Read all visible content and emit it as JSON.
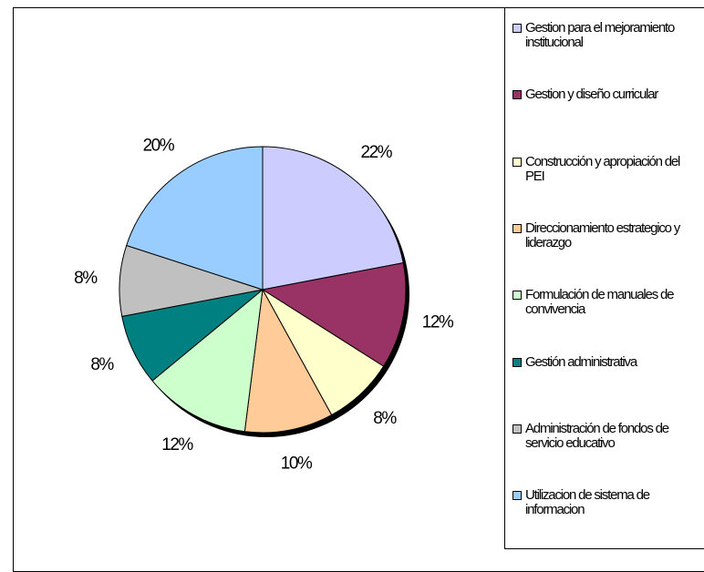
{
  "chart_data": {
    "type": "pie",
    "categories": [
      "Gestion para el mejoramiento institucional",
      "Gestion y diseño curricular",
      "Construcción y apropiación del PEI",
      "Direccionamiento estrategico y liderazgo",
      "Formulación de manuales de convivencia",
      "Gestión administrativa",
      "Administración de fondos de servicio educativo",
      "Utilizacion de sistema de informacion"
    ],
    "values": [
      22,
      12,
      8,
      10,
      12,
      8,
      8,
      20
    ],
    "value_labels": [
      "22%",
      "12%",
      "8%",
      "10%",
      "12%",
      "8%",
      "8%",
      "20%"
    ],
    "colors": [
      "#ccccff",
      "#993366",
      "#ffffcc",
      "#ffcc99",
      "#ccffcc",
      "#008080",
      "#c0c0c0",
      "#99ccff"
    ],
    "legend": "right"
  }
}
